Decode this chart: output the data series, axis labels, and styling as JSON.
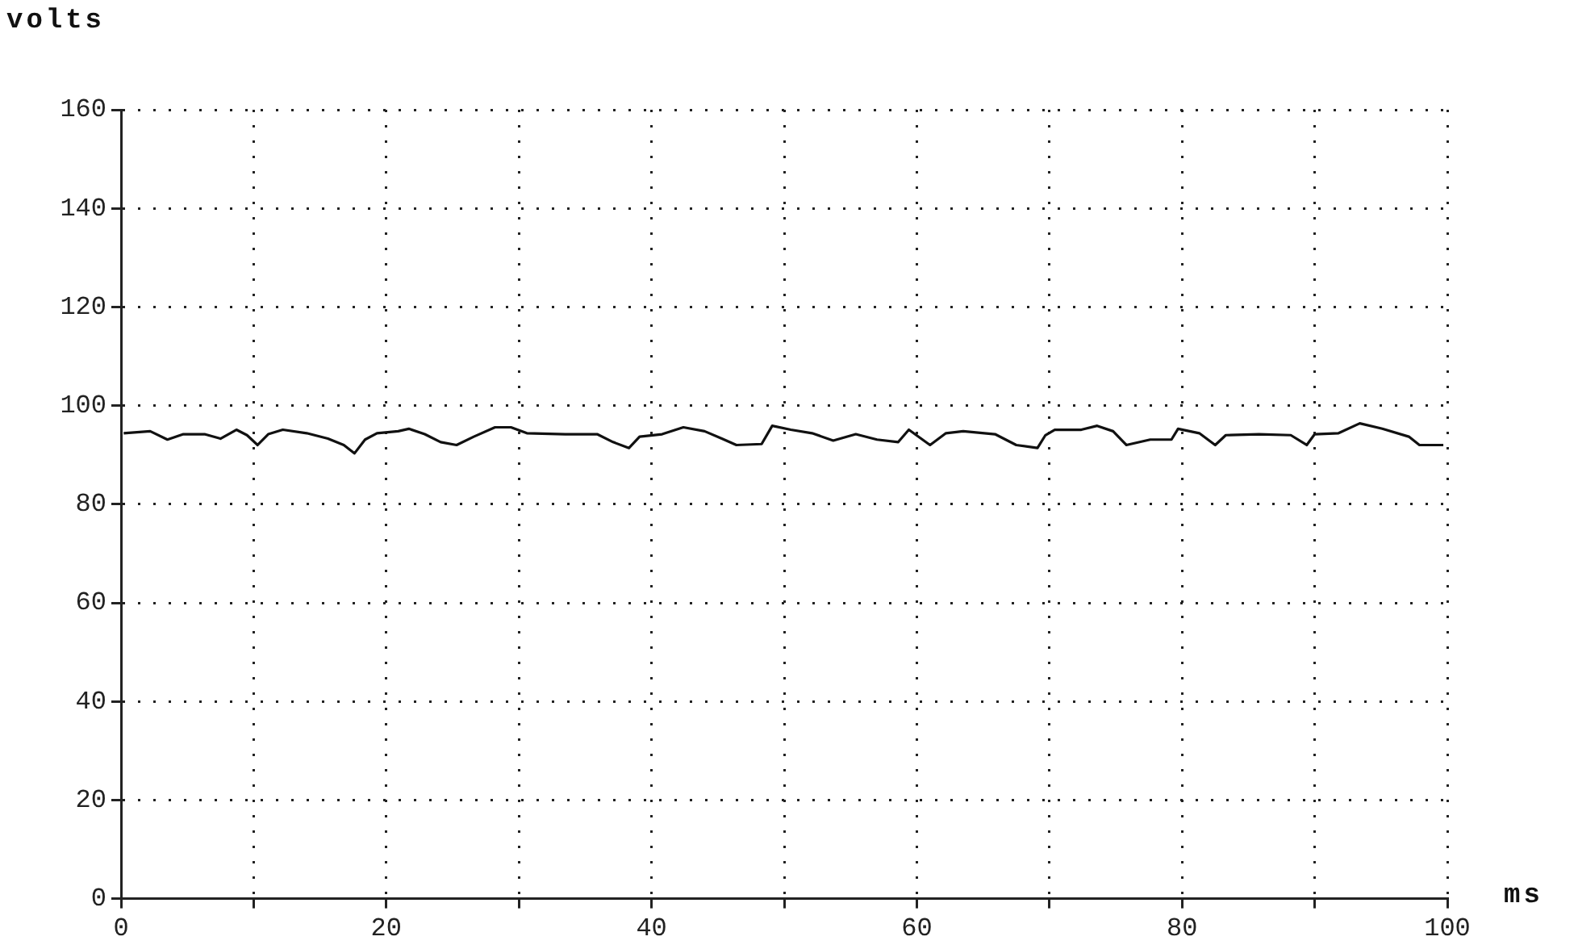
{
  "chart_data": {
    "type": "line",
    "ylabel": "volts",
    "xlabel": "ms",
    "x": [
      0.2,
      2.2,
      3.5,
      4.7,
      6.3,
      7.5,
      8.7,
      9.5,
      10.3,
      11.1,
      12.2,
      14,
      15.6,
      16.8,
      17.6,
      18.4,
      19.3,
      20.9,
      21.7,
      22.9,
      24.1,
      25.3,
      26.6,
      28.2,
      29.4,
      30.6,
      33.5,
      35.9,
      37.1,
      38.3,
      39.1,
      40.8,
      42.4,
      44,
      45.3,
      46.4,
      48.3,
      49.1,
      50.5,
      52.1,
      53.7,
      55.4,
      57,
      58.6,
      59.4,
      61,
      62.2,
      63.5,
      65.9,
      67.5,
      69.1,
      69.7,
      70.4,
      72.4,
      73.6,
      74.8,
      75.8,
      77.6,
      79.2,
      79.7,
      81.3,
      82.5,
      83.3,
      85.8,
      88.2,
      89.4,
      90,
      91.8,
      93.4,
      95.1,
      97.1,
      97.9,
      99.7
    ],
    "series": [
      {
        "color": "#111111",
        "values": [
          94.4,
          94.8,
          93.1,
          94.2,
          94.2,
          93.3,
          95.1,
          94,
          92,
          94.2,
          95.1,
          94.4,
          93.3,
          92,
          90.3,
          93.1,
          94.4,
          94.8,
          95.3,
          94.2,
          92.6,
          92,
          93.7,
          95.6,
          95.6,
          94.4,
          94.2,
          94.2,
          92.6,
          91.4,
          93.7,
          94.2,
          95.6,
          94.8,
          93.3,
          92,
          92.2,
          95.9,
          95.1,
          94.4,
          92.9,
          94.2,
          93.1,
          92.6,
          95.1,
          92,
          94.4,
          94.8,
          94.2,
          92,
          91.4,
          94,
          95.1,
          95.1,
          95.9,
          94.8,
          92,
          93.1,
          93.1,
          95.3,
          94.4,
          92,
          94,
          94.2,
          94,
          92,
          94.2,
          94.4,
          96.4,
          95.3,
          93.7,
          92,
          92
        ]
      }
    ],
    "xlim": [
      0,
      100
    ],
    "xticks": [
      0,
      {
        "value": 10,
        "label": null
      },
      20,
      {
        "value": 30,
        "label": null
      },
      40,
      {
        "value": 50,
        "label": null
      },
      60,
      {
        "value": 70,
        "label": null
      },
      80,
      {
        "value": 90,
        "label": null
      },
      100
    ],
    "ylim": [
      0,
      160
    ],
    "yticks": [
      0,
      20,
      40,
      60,
      80,
      100,
      120,
      140,
      160
    ],
    "grid": true,
    "legend": false,
    "marker": "none"
  }
}
